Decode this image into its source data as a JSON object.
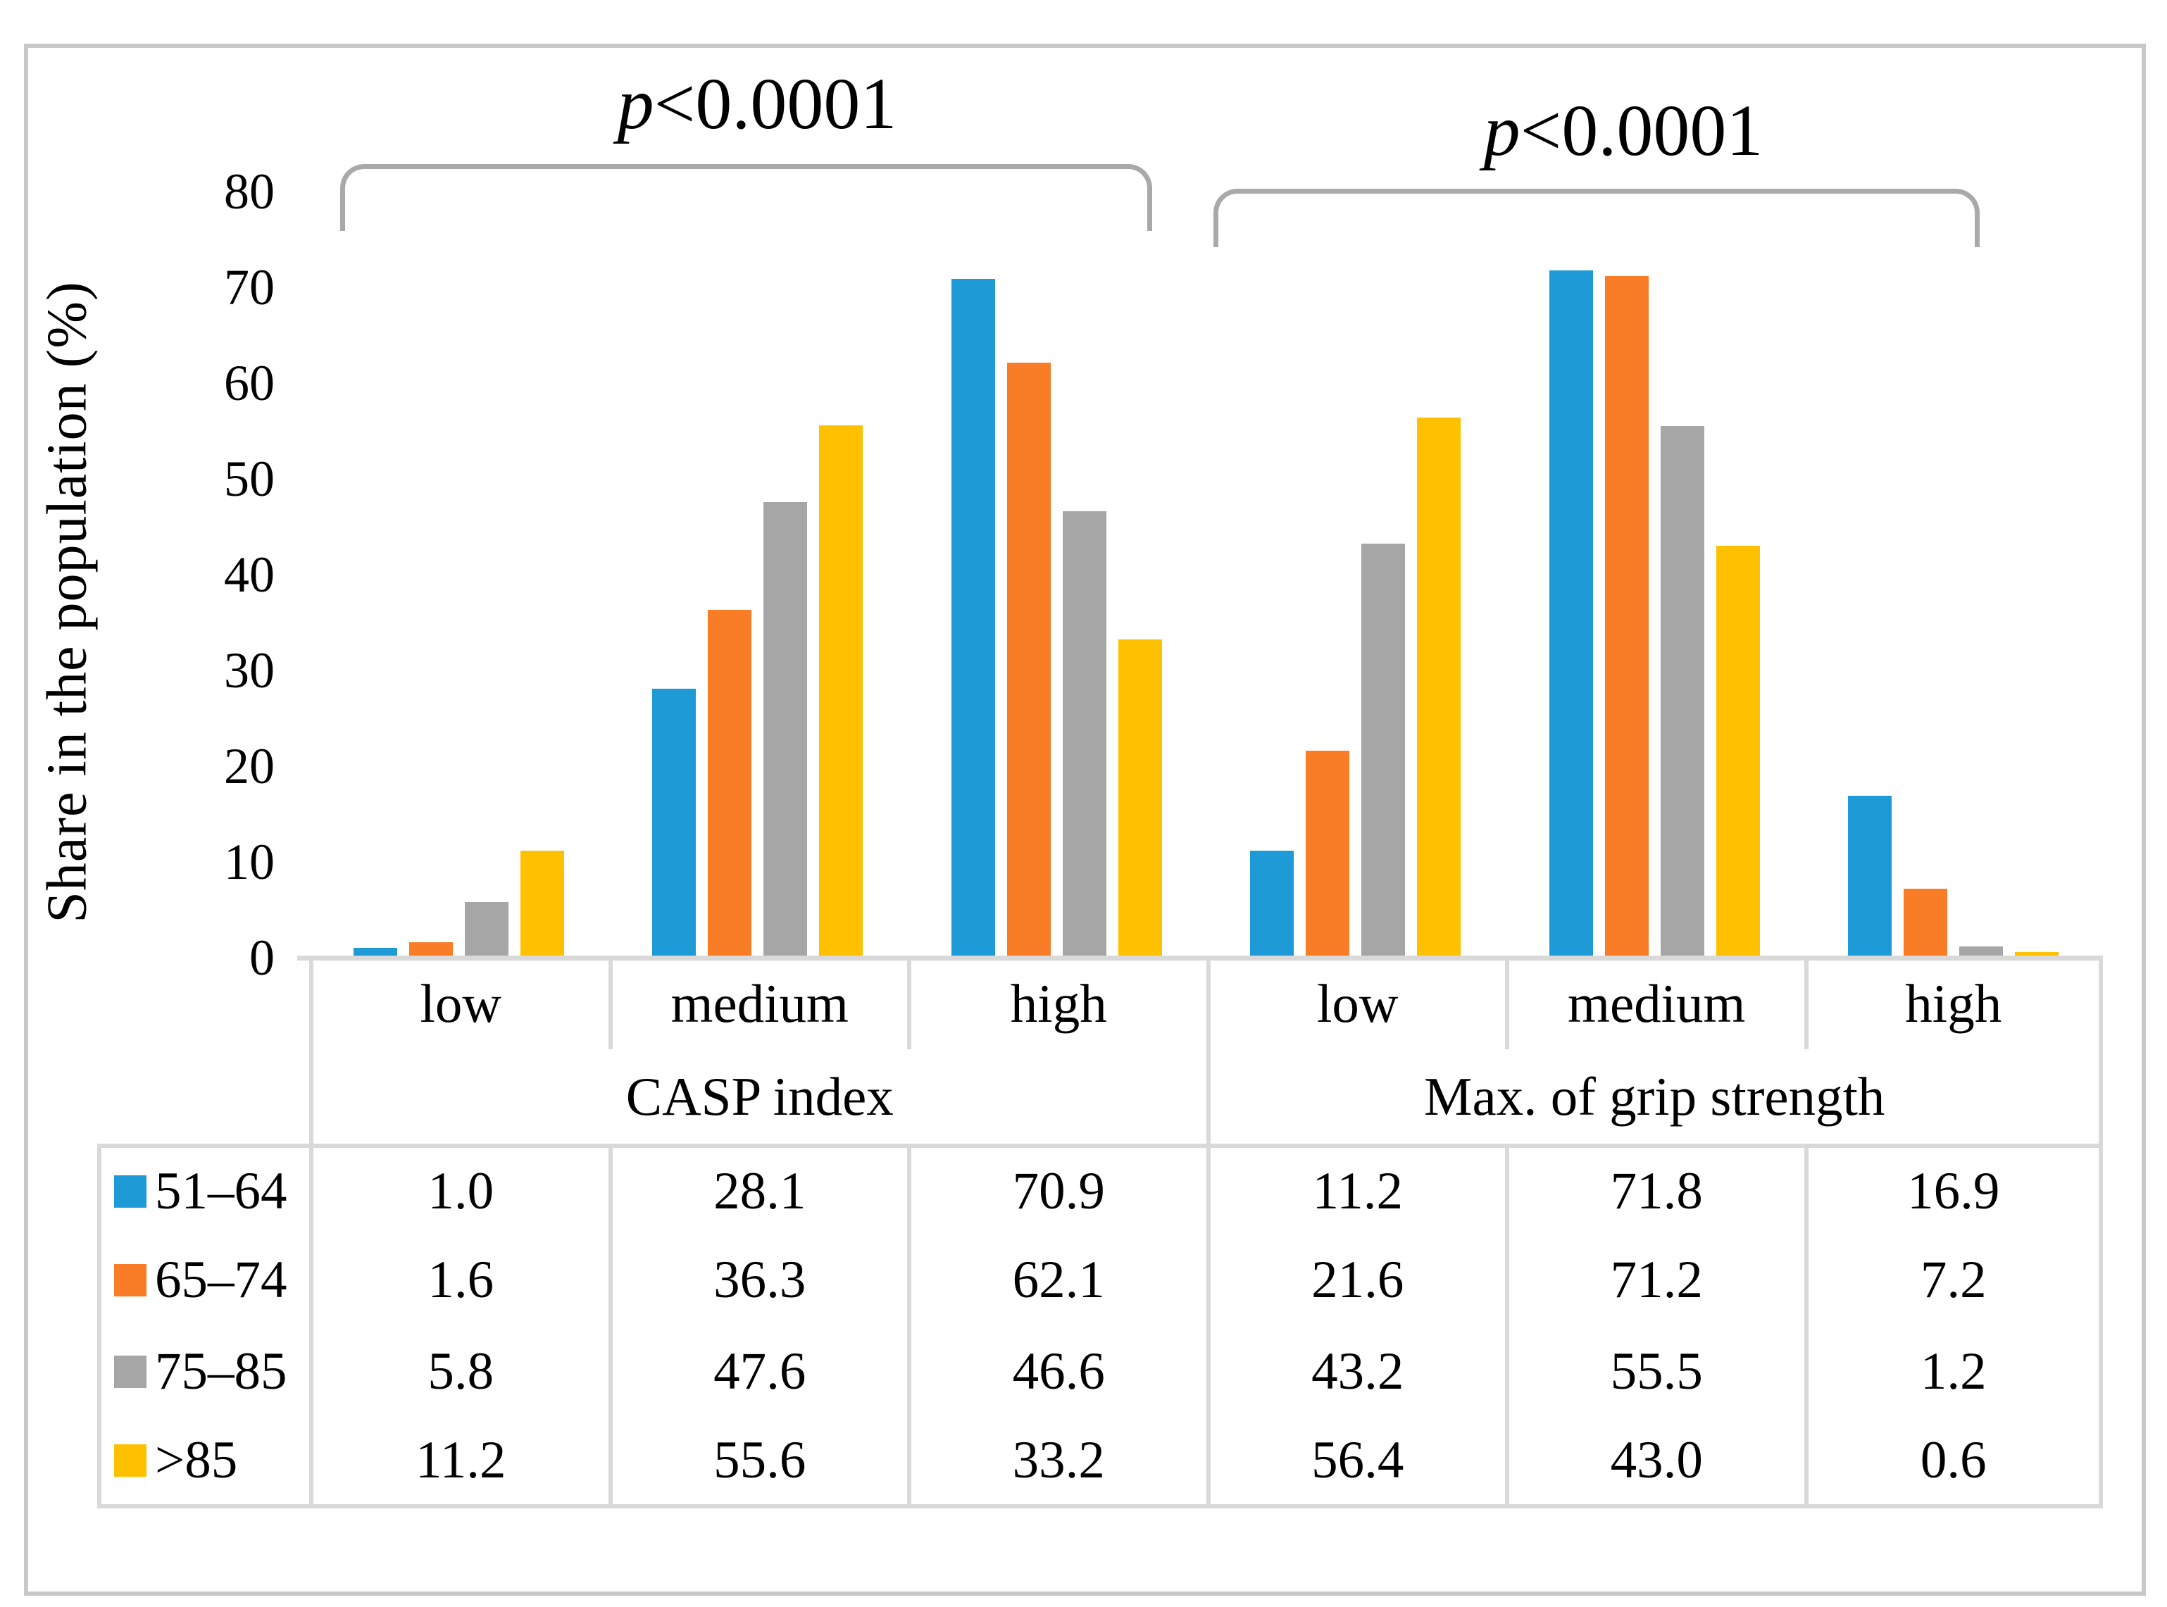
{
  "figure": {
    "y_axis_title": "Share in the population (%)",
    "yticks": [
      "80",
      "70",
      "60",
      "50",
      "40",
      "30",
      "20",
      "10",
      "0"
    ],
    "annotations": [
      {
        "p_symbol": "p",
        "comparison": "<0.0001"
      },
      {
        "p_symbol": "p",
        "comparison": "<0.0001"
      }
    ]
  },
  "chart_data": {
    "type": "bar",
    "title": "",
    "xlabel": "",
    "ylabel": "Share in the population (%)",
    "ylim": [
      0,
      80
    ],
    "ytick_step": 10,
    "grid": false,
    "legend_position": "table-left",
    "categories": [
      "low",
      "medium",
      "high",
      "low",
      "medium",
      "high"
    ],
    "category_groups": [
      {
        "label": "CASP index",
        "categories": [
          "low",
          "medium",
          "high"
        ]
      },
      {
        "label": "Max. of grip strength",
        "categories": [
          "low",
          "medium",
          "high"
        ]
      }
    ],
    "series": [
      {
        "name": "51–64",
        "color": "#1e9bd7",
        "values": [
          1.0,
          28.1,
          70.9,
          11.2,
          71.8,
          16.9
        ]
      },
      {
        "name": "65–74",
        "color": "#f97d27",
        "values": [
          1.6,
          36.3,
          62.1,
          21.6,
          71.2,
          7.2
        ]
      },
      {
        "name": "75–85",
        "color": "#a6a6a6",
        "values": [
          5.8,
          47.6,
          46.6,
          43.2,
          55.5,
          1.2
        ]
      },
      {
        "name": ">85",
        "color": "#ffc000",
        "values": [
          11.2,
          55.6,
          33.2,
          56.4,
          43.0,
          0.6
        ]
      }
    ],
    "annotations": [
      "p<0.0001",
      "p<0.0001"
    ],
    "data_table": {
      "col_headers": [
        "low",
        "medium",
        "high",
        "low",
        "medium",
        "high"
      ],
      "group_headers": [
        "CASP index",
        "Max. of grip strength"
      ],
      "rows": [
        {
          "label": "51–64",
          "values": [
            "1.0",
            "28.1",
            "70.9",
            "11.2",
            "71.8",
            "16.9"
          ]
        },
        {
          "label": "65–74",
          "values": [
            "1.6",
            "36.3",
            "62.1",
            "21.6",
            "71.2",
            "7.2"
          ]
        },
        {
          "label": "75–85",
          "values": [
            "5.8",
            "47.6",
            "46.6",
            "43.2",
            "55.5",
            "1.2"
          ]
        },
        {
          "label": ">85",
          "values": [
            "11.2",
            "55.6",
            "33.2",
            "56.4",
            "43.0",
            "0.6"
          ]
        }
      ]
    }
  }
}
